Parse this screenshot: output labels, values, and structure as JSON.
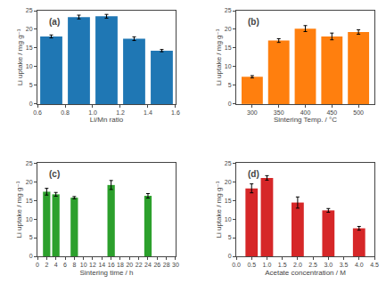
{
  "chart_data": [
    {
      "type": "bar",
      "x": [
        0.7,
        0.9,
        1.1,
        1.3,
        1.5
      ],
      "values": [
        18.1,
        23.3,
        23.5,
        17.5,
        14.3
      ],
      "yerr": [
        0.4,
        0.5,
        0.5,
        0.5,
        0.3
      ],
      "xlabel": "Li/Mn ratio",
      "ylabel": "Li uptake / mg g⁻¹",
      "xlim": [
        0.6,
        1.6
      ],
      "xticks": [
        0.6,
        0.8,
        {
          "value": 1.0,
          "label": "1.0"
        },
        1.2,
        1.4,
        1.6
      ],
      "ylim": [
        0,
        25
      ],
      "yticks": [
        0,
        5,
        10,
        15,
        20,
        25
      ],
      "annotations": [
        "(a)"
      ],
      "grid": false
    },
    {
      "type": "bar",
      "x": [
        300,
        350,
        400,
        450,
        500
      ],
      "values": [
        7.3,
        17.0,
        20.2,
        18.1,
        19.3
      ],
      "yerr": [
        0.3,
        0.5,
        0.8,
        0.9,
        0.6
      ],
      "xlabel": "Sintering Temp. / °C",
      "ylabel": "Li uptake / mg g⁻¹",
      "xlim": [
        270,
        530
      ],
      "xticks": [
        300,
        350,
        400,
        450,
        500
      ],
      "ylim": [
        0,
        25
      ],
      "yticks": [
        0,
        5,
        10,
        15,
        20,
        25
      ],
      "annotations": [
        "(b)"
      ],
      "grid": false
    },
    {
      "type": "bar",
      "x": [
        2,
        4,
        8,
        16,
        24
      ],
      "values": [
        17.3,
        16.6,
        15.7,
        19.1,
        16.2
      ],
      "yerr": [
        0.9,
        0.5,
        0.3,
        1.2,
        0.6
      ],
      "xlabel": "Sintering time / h",
      "ylabel": "Li uptake / mg g⁻¹",
      "xlim": [
        0,
        30
      ],
      "xticks": [
        0,
        2,
        4,
        6,
        8,
        10,
        12,
        14,
        16,
        18,
        20,
        22,
        24,
        26,
        28,
        30
      ],
      "ylim": [
        0,
        25
      ],
      "yticks": [
        0,
        5,
        10,
        15,
        20,
        25
      ],
      "annotations": [
        "(c)"
      ],
      "grid": false
    },
    {
      "type": "bar",
      "x": [
        0.5,
        1.0,
        2.0,
        3.0,
        4.0
      ],
      "values": [
        18.2,
        21.0,
        14.4,
        12.3,
        7.5
      ],
      "yerr": [
        1.2,
        0.6,
        1.5,
        0.5,
        0.5
      ],
      "xlabel": "Acetate concentration / M",
      "ylabel": "Li uptake / mg g⁻¹",
      "xlim": [
        0.0,
        4.5
      ],
      "xticks": [
        {
          "value": 0.0,
          "label": "0.0"
        },
        0.5,
        {
          "value": 1.0,
          "label": "1.0"
        },
        1.5,
        {
          "value": 2.0,
          "label": "2.0"
        },
        2.5,
        {
          "value": 3.0,
          "label": "3.0"
        },
        3.5,
        {
          "value": 4.0,
          "label": "4.0"
        },
        4.5
      ],
      "ylim": [
        0,
        25
      ],
      "yticks": [
        0,
        5,
        10,
        15,
        20,
        25
      ],
      "annotations": [
        "(d)"
      ],
      "grid": false
    }
  ]
}
